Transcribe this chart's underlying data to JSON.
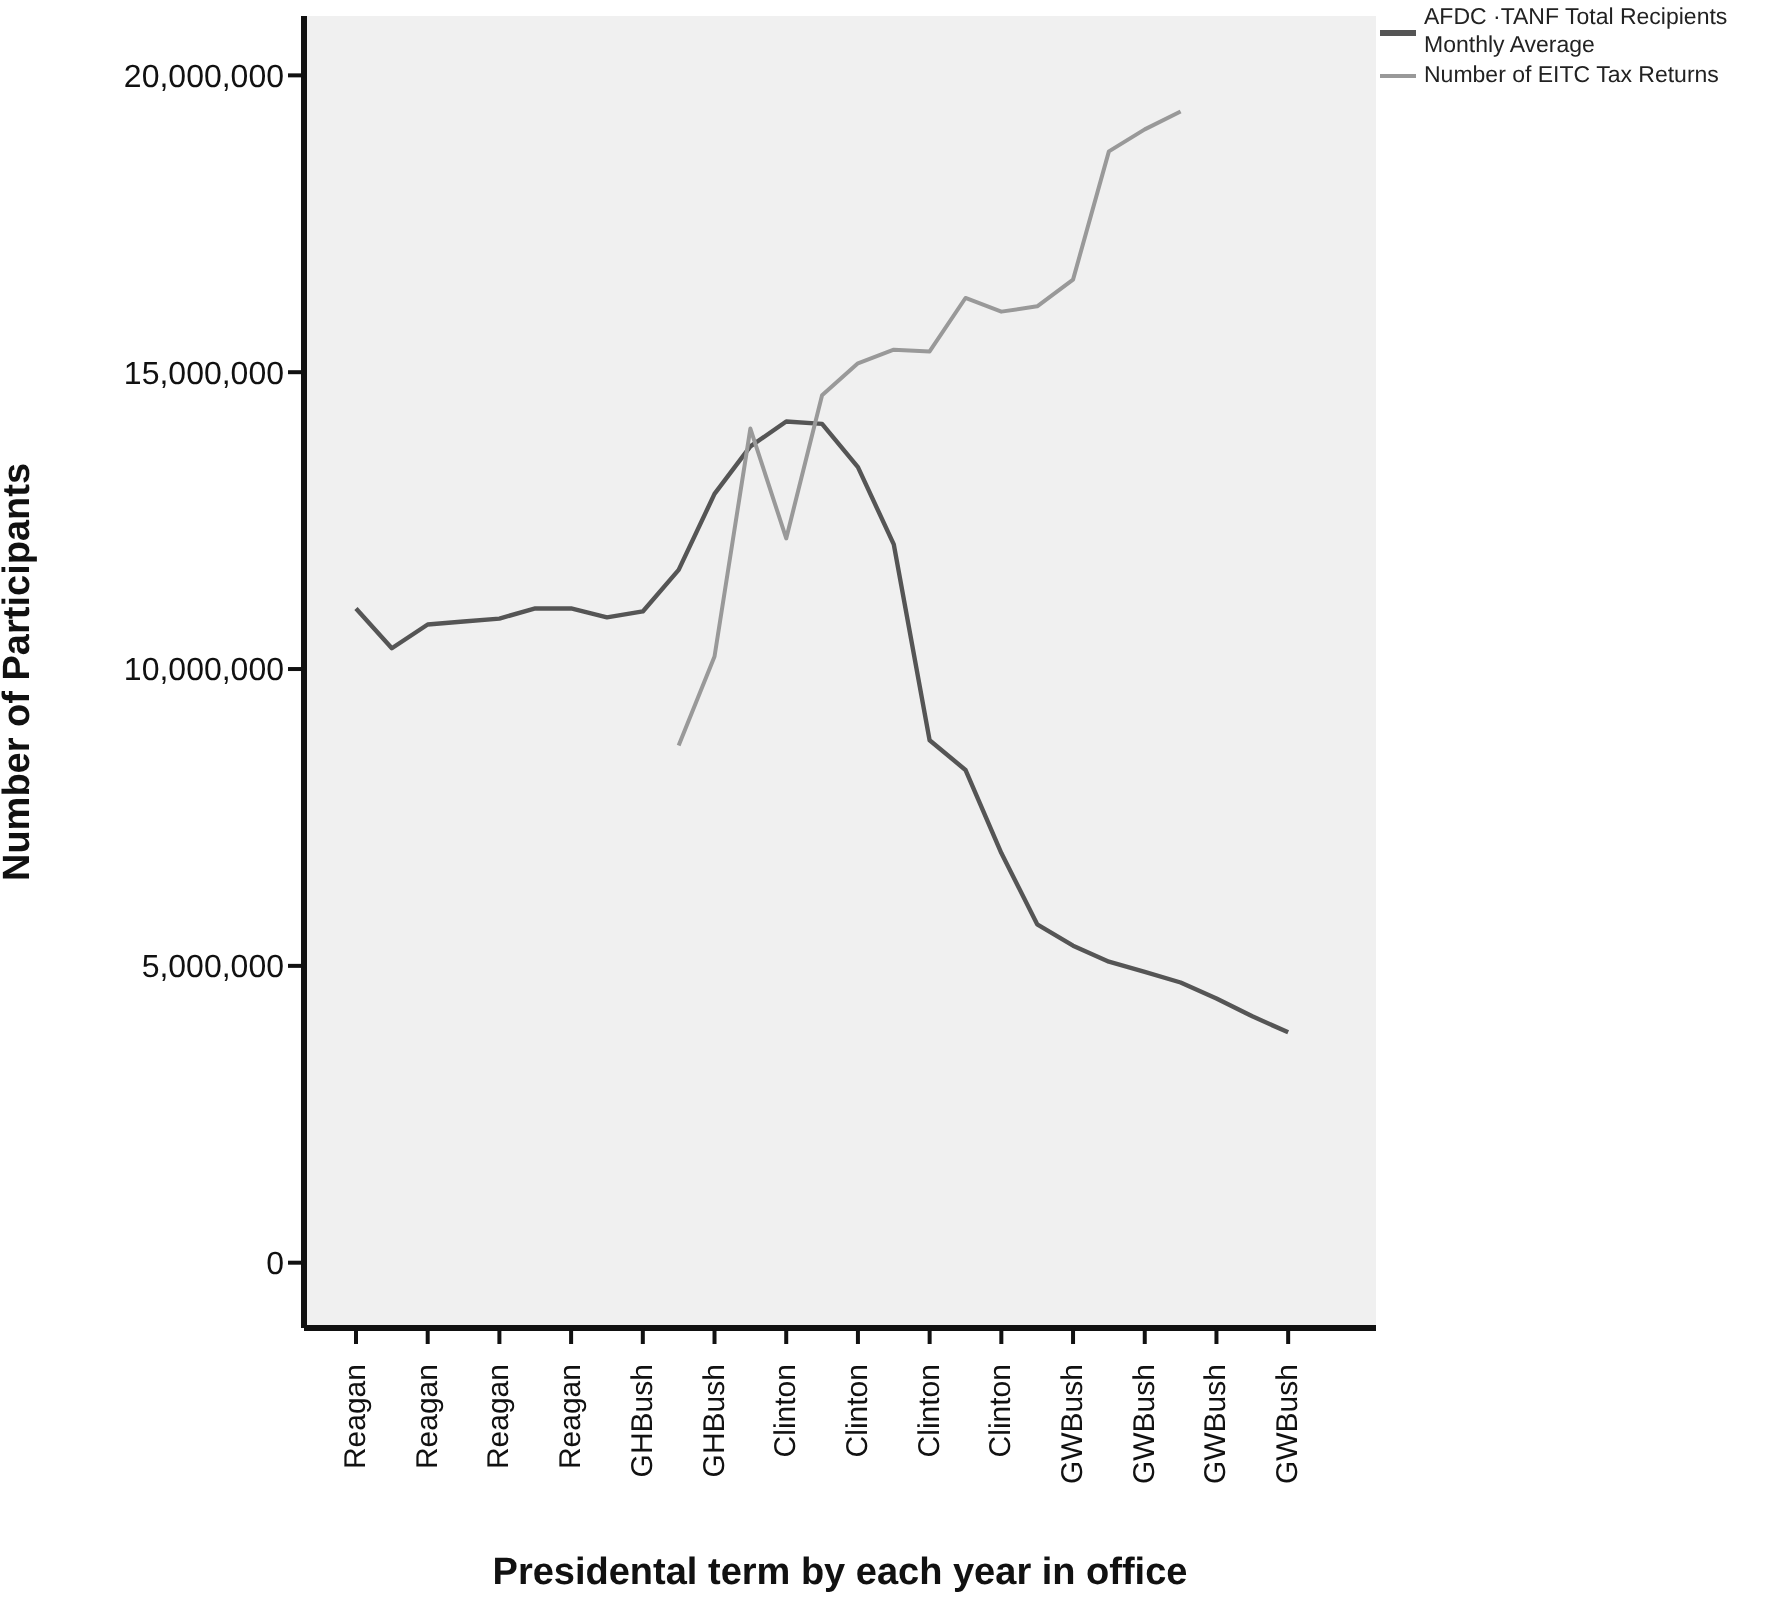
{
  "chart_data": {
    "type": "line",
    "xlabel": "Presidental term by each year in office",
    "ylabel": "Number of Participants",
    "categories": [
      "Reagan",
      null,
      "Reagan",
      null,
      "Reagan",
      null,
      "Reagan",
      null,
      "GHBush",
      null,
      "GHBush",
      null,
      "Clinton",
      null,
      "Clinton",
      null,
      "Clinton",
      null,
      "Clinton",
      null,
      "GWBush",
      null,
      "GWBush",
      null,
      "GWBush",
      null,
      "GWBush"
    ],
    "ylim": [
      -1100000,
      21000000
    ],
    "yticks": [
      {
        "value": 0,
        "label": "0"
      },
      {
        "value": 5000000,
        "label": "5,000,000"
      },
      {
        "value": 10000000,
        "label": "10,000,000"
      },
      {
        "value": 15000000,
        "label": "15,000,000"
      },
      {
        "value": 20000000,
        "label": "20,000,000"
      }
    ],
    "grid": false,
    "legend": "top right",
    "marker": "none",
    "line_style": "solid",
    "series": [
      {
        "name": "AFDC ·TANF Total Recipients Monthly Average",
        "color": "#555555",
        "values": [
          11020000,
          10350000,
          10750000,
          10800000,
          10850000,
          11020000,
          11020000,
          10870000,
          10970000,
          11670000,
          12950000,
          13750000,
          14170000,
          14130000,
          13400000,
          12100000,
          8800000,
          8300000,
          6900000,
          5700000,
          5340000,
          5070000,
          4900000,
          4720000,
          4450000,
          4150000,
          3880000
        ]
      },
      {
        "name": "Number of EITC Tax Returns",
        "color": "#999999",
        "values": [
          null,
          null,
          null,
          null,
          null,
          null,
          null,
          null,
          null,
          8710000,
          10210000,
          14050000,
          12200000,
          14610000,
          15150000,
          15380000,
          15350000,
          16250000,
          16020000,
          16110000,
          16560000,
          18720000,
          19090000,
          19390000,
          null,
          null,
          null
        ]
      }
    ]
  }
}
